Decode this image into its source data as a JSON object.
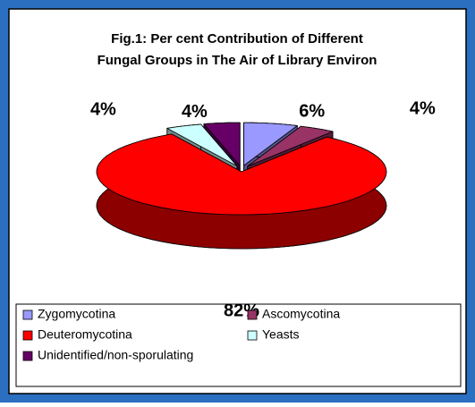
{
  "chart_data": {
    "type": "pie3d",
    "title": [
      "Fig.1: Per cent Contribution of Different",
      "Fungal Groups in The Air of Library Environ"
    ],
    "categories": [
      "Zygomycotina",
      "Ascomycotina",
      "Deuteromycotina",
      "Yeasts",
      "Unidentified/non-sporulating"
    ],
    "values": [
      6,
      4,
      82,
      4,
      4
    ],
    "value_labels": [
      "6%",
      "4%",
      "82%",
      "4%",
      "4%"
    ],
    "colors": [
      "#9999ff",
      "#993366",
      "#ff0000",
      "#ccffff",
      "#660066"
    ],
    "legend": "bottom"
  }
}
